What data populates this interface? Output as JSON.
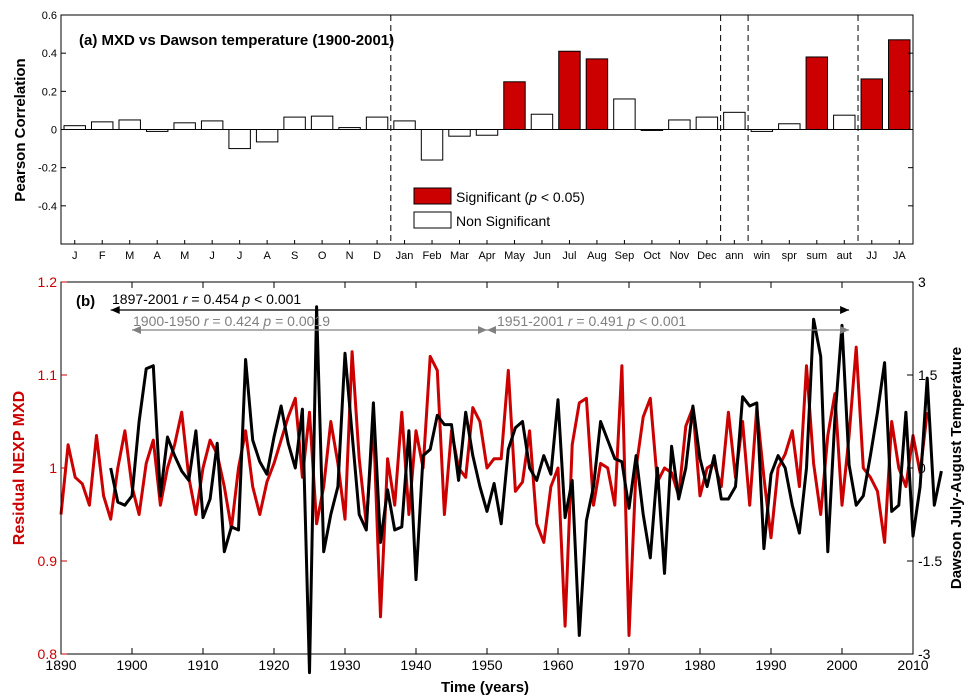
{
  "chart_data": [
    {
      "type": "bar",
      "title": "(a) MXD vs Dawson temperature (1900-2001)",
      "ylabel": "Pearson Correlation",
      "ylim": [
        -0.6,
        0.6
      ],
      "yticks": [
        "0.6",
        "0.4",
        "0.2",
        "0",
        "-0.2",
        "-0.4"
      ],
      "categories": [
        "J",
        "F",
        "M",
        "A",
        "M",
        "J",
        "J",
        "A",
        "S",
        "O",
        "N",
        "D",
        "Jan",
        "Feb",
        "Mar",
        "Apr",
        "May",
        "Jun",
        "Jul",
        "Aug",
        "Sep",
        "Oct",
        "Nov",
        "Dec",
        "ann",
        "win",
        "spr",
        "sum",
        "aut",
        "JJ",
        "JA"
      ],
      "values": [
        0.02,
        0.04,
        0.05,
        -0.01,
        0.035,
        0.045,
        -0.1,
        -0.065,
        0.065,
        0.07,
        0.01,
        0.065,
        0.045,
        -0.16,
        -0.035,
        -0.03,
        0.25,
        0.08,
        0.41,
        0.37,
        0.16,
        -0.005,
        0.05,
        0.065,
        0.09,
        -0.01,
        0.03,
        0.38,
        0.075,
        0.265,
        0.47
      ],
      "significant": [
        false,
        false,
        false,
        false,
        false,
        false,
        false,
        false,
        false,
        false,
        false,
        false,
        false,
        false,
        false,
        false,
        true,
        false,
        true,
        true,
        false,
        false,
        false,
        false,
        false,
        false,
        false,
        true,
        false,
        true,
        true
      ],
      "colors": {
        "significant": "#cc0000",
        "non_significant": "#ffffff"
      },
      "legend": {
        "significant_prefix": "Significant (",
        "p_symbol": "p",
        "significant_suffix": " < 0.05)",
        "non_significant": "Non Significant",
        "placement": "bottom-center"
      }
    },
    {
      "type": "line",
      "label": "(b)",
      "xlabel": "Time (years)",
      "xlim": [
        1890,
        2010
      ],
      "xticks": [
        "1890",
        "1900",
        "1910",
        "1920",
        "1930",
        "1940",
        "1950",
        "1960",
        "1970",
        "1980",
        "1990",
        "2000",
        "2010"
      ],
      "ylabel_left": "Residual NEXP MXD",
      "ylim_left": [
        0.8,
        1.2
      ],
      "yticks_left": [
        "1.2",
        "1.1",
        "1",
        "0.9",
        "0.8"
      ],
      "ylabel_right": "Dawson July-August Temperature",
      "ylim_right": [
        -3,
        3
      ],
      "yticks_right": [
        "3",
        "1.5",
        "0",
        "-1.5",
        "-3"
      ],
      "annotations": [
        {
          "period": "1897-2001",
          "r_sym": "r",
          "r_text": " = 0.454 ",
          "p_sym": "p",
          "p_text": " < 0.001",
          "x0": 1897,
          "x1": 2001,
          "color": "#000000"
        },
        {
          "period": "1900-1950",
          "r_sym": "r",
          "r_text": " = 0.424 ",
          "p_sym": "p",
          "p_text": " = 0.0019",
          "x0": 1900,
          "x1": 1950,
          "color": "#808080"
        },
        {
          "period": "1951-2001",
          "r_sym": "r",
          "r_text": " = 0.491 ",
          "p_sym": "p",
          "p_text": " < 0.001",
          "x0": 1950,
          "x1": 2001,
          "color": "#808080"
        }
      ],
      "series": [
        {
          "axis": "left",
          "color": "#cc0000",
          "x_start": 1890,
          "values": [
            0.95,
            1.025,
            0.99,
            0.983,
            0.96,
            1.035,
            0.97,
            0.945,
            1.0,
            1.04,
            0.98,
            0.95,
            1.005,
            1.03,
            0.96,
            1.0,
            1.025,
            1.06,
            0.99,
            0.95,
            1.0,
            1.03,
            1.015,
            0.98,
            0.935,
            1.0,
            1.04,
            0.98,
            0.95,
            0.985,
            1.005,
            1.03,
            1.055,
            1.075,
            0.99,
            1.06,
            0.94,
            0.98,
            1.05,
            1.005,
            0.945,
            1.125,
            1.01,
            0.94,
            1.05,
            0.84,
            1.01,
            0.96,
            1.06,
            0.95,
            1.04,
            1.0,
            1.12,
            1.105,
            0.95,
            1.04,
            1.0,
            0.99,
            1.065,
            1.05,
            1.0,
            1.01,
            1.01,
            1.105,
            0.975,
            0.985,
            1.04,
            0.94,
            0.92,
            0.98,
            1.0,
            0.83,
            1.025,
            1.07,
            1.075,
            0.96,
            1.005,
            1.0,
            0.96,
            1.11,
            0.82,
            1.0,
            1.055,
            1.075,
            0.985,
            1.0,
            0.995,
            0.97,
            1.045,
            1.065,
            0.97,
            1.0,
            1.005,
            0.98,
            1.06,
            0.99,
            1.05,
            0.96,
            1.065,
            0.99,
            0.925,
            1.0,
            1.015,
            1.04,
            0.98,
            1.11,
            1.005,
            0.95,
            1.035,
            1.08,
            0.96,
            1.035,
            1.13,
            1.0,
            0.99,
            0.975,
            0.92,
            1.05,
            1.0,
            0.98,
            1.035,
            0.995,
            1.06
          ]
        },
        {
          "axis": "right",
          "color": "#000000",
          "x_start": 1897,
          "values": [
            0.0,
            -0.55,
            -0.6,
            -0.45,
            0.75,
            1.6,
            1.65,
            -0.45,
            0.5,
            0.2,
            -0.05,
            -0.2,
            0.6,
            -0.8,
            -0.5,
            0.4,
            -1.35,
            -0.95,
            -1.0,
            1.75,
            0.45,
            0.1,
            -0.1,
            0.5,
            1.0,
            0.4,
            0.0,
            0.95,
            -3.3,
            2.6,
            -1.35,
            -0.75,
            -0.3,
            1.85,
            0.55,
            -0.75,
            -1.0,
            1.05,
            -1.2,
            -0.35,
            -1.0,
            -0.95,
            0.6,
            -1.8,
            0.2,
            0.3,
            0.85,
            0.7,
            0.7,
            -0.2,
            0.9,
            0.2,
            -0.3,
            -0.7,
            -0.25,
            -0.9,
            0.3,
            0.65,
            0.75,
            0.0,
            -0.2,
            0.2,
            -0.1,
            1.1,
            -0.8,
            -0.2,
            -2.7,
            -0.85,
            -0.3,
            0.75,
            0.45,
            0.15,
            0.1,
            -0.65,
            0.2,
            -0.75,
            -1.45,
            0.0,
            -1.7,
            0.35,
            -0.5,
            0.0,
            1.0,
            0.15,
            -0.3,
            0.2,
            -0.5,
            -0.5,
            -0.3,
            1.15,
            1.0,
            1.05,
            -1.3,
            -0.1,
            0.2,
            0.0,
            -0.6,
            -1.05,
            0.0,
            2.4,
            1.8,
            -1.35,
            0.8,
            2.3,
            0.05,
            -0.6,
            -0.45,
            0.2,
            0.9,
            1.7,
            -0.7,
            -0.6,
            0.9,
            -1.1,
            -0.3,
            1.45,
            -0.6,
            -0.05
          ]
        }
      ]
    }
  ]
}
